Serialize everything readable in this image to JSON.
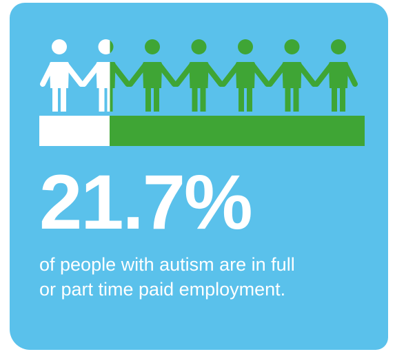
{
  "infographic": {
    "figures": {
      "total": 7,
      "employed_fraction": 0.217,
      "employed_color": "#ffffff",
      "other_color": "#3fa535",
      "icon": "person-holding-hands-icon"
    },
    "bar": {
      "employed_fraction": 0.217,
      "employed_color": "#ffffff",
      "other_color": "#3fa535"
    },
    "statistic": "21.7%",
    "caption_line1": "of people with autism are in full",
    "caption_line2": "or part time paid employment.",
    "background_color": "#5ac1eb"
  }
}
